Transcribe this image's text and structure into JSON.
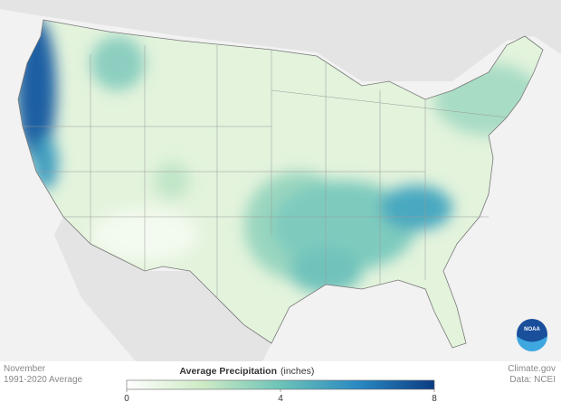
{
  "header": {
    "month": "November",
    "period": "1991-2020 Average"
  },
  "legend": {
    "title": "Average Precipitation",
    "unit": "(inches)",
    "range": [
      0,
      8
    ],
    "ticks": [
      0,
      4,
      8
    ]
  },
  "credits": {
    "source": "Climate.gov",
    "data": "Data: NCEI"
  },
  "logo": "NOAA"
}
